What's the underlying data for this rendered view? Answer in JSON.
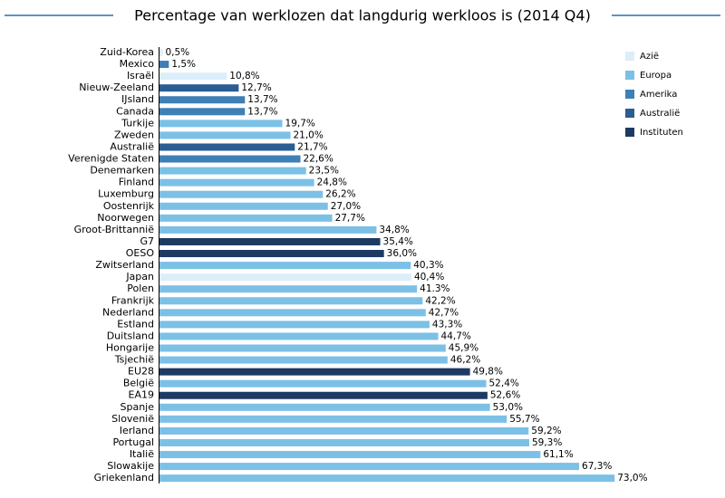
{
  "chart_data": {
    "type": "bar",
    "orientation": "horizontal",
    "title": "Percentage van werklozen dat langdurig werkloos is (2014 Q4)",
    "categories": [
      "Zuid-Korea",
      "Mexico",
      "Israël",
      "Nieuw-Zeeland",
      "IJsland",
      "Canada",
      "Turkije",
      "Zweden",
      "Australië",
      "Verenigde Staten",
      "Denemarken",
      "Finland",
      "Luxemburg",
      "Oostenrijk",
      "Noorwegen",
      "Groot-Brittannië",
      "G7",
      "OESO",
      "Zwitserland",
      "Japan",
      "Polen",
      "Frankrijk",
      "Nederland",
      "Estland",
      "Duitsland",
      "Hongarije",
      "Tsjechië",
      "EU28",
      "België",
      "EA19",
      "Spanje",
      "Slovenië",
      "Ierland",
      "Portugal",
      "Italië",
      "Slowakije",
      "Griekenland"
    ],
    "series": [
      {
        "name": "Azië",
        "color": "#dbeefa",
        "values": [
          0.5,
          null,
          10.8,
          null,
          null,
          null,
          null,
          null,
          null,
          null,
          null,
          null,
          null,
          null,
          null,
          null,
          null,
          null,
          null,
          40.4,
          null,
          null,
          null,
          null,
          null,
          null,
          null,
          null,
          null,
          null,
          null,
          null,
          null,
          null,
          null,
          null,
          null
        ],
        "value_labels": [
          "0,5%",
          null,
          "10,8%",
          null,
          null,
          null,
          null,
          null,
          null,
          null,
          null,
          null,
          null,
          null,
          null,
          null,
          null,
          null,
          null,
          "40,4%",
          null,
          null,
          null,
          null,
          null,
          null,
          null,
          null,
          null,
          null,
          null,
          null,
          null,
          null,
          null,
          null,
          null
        ]
      },
      {
        "name": "Europa",
        "color": "#7cc0e6",
        "values": [
          null,
          null,
          null,
          null,
          null,
          null,
          19.7,
          21.0,
          null,
          null,
          23.5,
          24.8,
          26.2,
          27.0,
          27.7,
          34.8,
          null,
          null,
          40.3,
          null,
          41.3,
          42.2,
          42.7,
          43.3,
          44.7,
          45.9,
          46.2,
          null,
          52.4,
          null,
          53.0,
          55.7,
          59.2,
          59.3,
          61.1,
          67.3,
          73.0
        ],
        "value_labels": [
          null,
          null,
          null,
          null,
          null,
          null,
          "19,7%",
          "21,0%",
          null,
          null,
          "23,5%",
          "24,8%",
          "26,2%",
          "27,0%",
          "27,7%",
          "34,8%",
          null,
          null,
          "40,3%",
          null,
          "41.3%",
          "42,2%",
          "42,7%",
          "43,3%",
          "44,7%",
          "45,9%",
          "46,2%",
          null,
          "52,4%",
          null,
          "53,0%",
          "55,7%",
          "59,2%",
          "59,3%",
          "61,1%",
          "67,3%",
          "73,0%"
        ]
      },
      {
        "name": "Amerika",
        "color": "#3f7fb5",
        "values": [
          null,
          1.5,
          null,
          null,
          13.7,
          13.7,
          null,
          null,
          null,
          22.6,
          null,
          null,
          null,
          null,
          null,
          null,
          null,
          null,
          null,
          null,
          null,
          null,
          null,
          null,
          null,
          null,
          null,
          null,
          null,
          null,
          null,
          null,
          null,
          null,
          null,
          null,
          null
        ],
        "value_labels": [
          null,
          "1,5%",
          null,
          null,
          "13,7%",
          "13,7%",
          null,
          null,
          null,
          "22,6%",
          null,
          null,
          null,
          null,
          null,
          null,
          null,
          null,
          null,
          null,
          null,
          null,
          null,
          null,
          null,
          null,
          null,
          null,
          null,
          null,
          null,
          null,
          null,
          null,
          null,
          null,
          null
        ]
      },
      {
        "name": "Australië",
        "color": "#2a5d92",
        "values": [
          null,
          null,
          null,
          12.7,
          null,
          null,
          null,
          null,
          21.7,
          null,
          null,
          null,
          null,
          null,
          null,
          null,
          null,
          null,
          null,
          null,
          null,
          null,
          null,
          null,
          null,
          null,
          null,
          null,
          null,
          null,
          null,
          null,
          null,
          null,
          null,
          null,
          null
        ],
        "value_labels": [
          null,
          null,
          null,
          "12,7%",
          null,
          null,
          null,
          null,
          "21,7%",
          null,
          null,
          null,
          null,
          null,
          null,
          null,
          null,
          null,
          null,
          null,
          null,
          null,
          null,
          null,
          null,
          null,
          null,
          null,
          null,
          null,
          null,
          null,
          null,
          null,
          null,
          null,
          null
        ]
      },
      {
        "name": "Instituten",
        "color": "#1e3a63",
        "values": [
          null,
          null,
          null,
          null,
          null,
          null,
          null,
          null,
          null,
          null,
          null,
          null,
          null,
          null,
          null,
          null,
          35.4,
          36.0,
          null,
          null,
          null,
          null,
          null,
          null,
          null,
          null,
          null,
          49.8,
          null,
          52.6,
          null,
          null,
          null,
          null,
          null,
          null,
          null
        ],
        "value_labels": [
          null,
          null,
          null,
          null,
          null,
          null,
          null,
          null,
          null,
          null,
          null,
          null,
          null,
          null,
          null,
          null,
          "35,4%",
          "36,0%",
          null,
          null,
          null,
          null,
          null,
          null,
          null,
          null,
          null,
          "49,8%",
          null,
          "52,6%",
          null,
          null,
          null,
          null,
          null,
          null,
          null
        ]
      }
    ]
  }
}
